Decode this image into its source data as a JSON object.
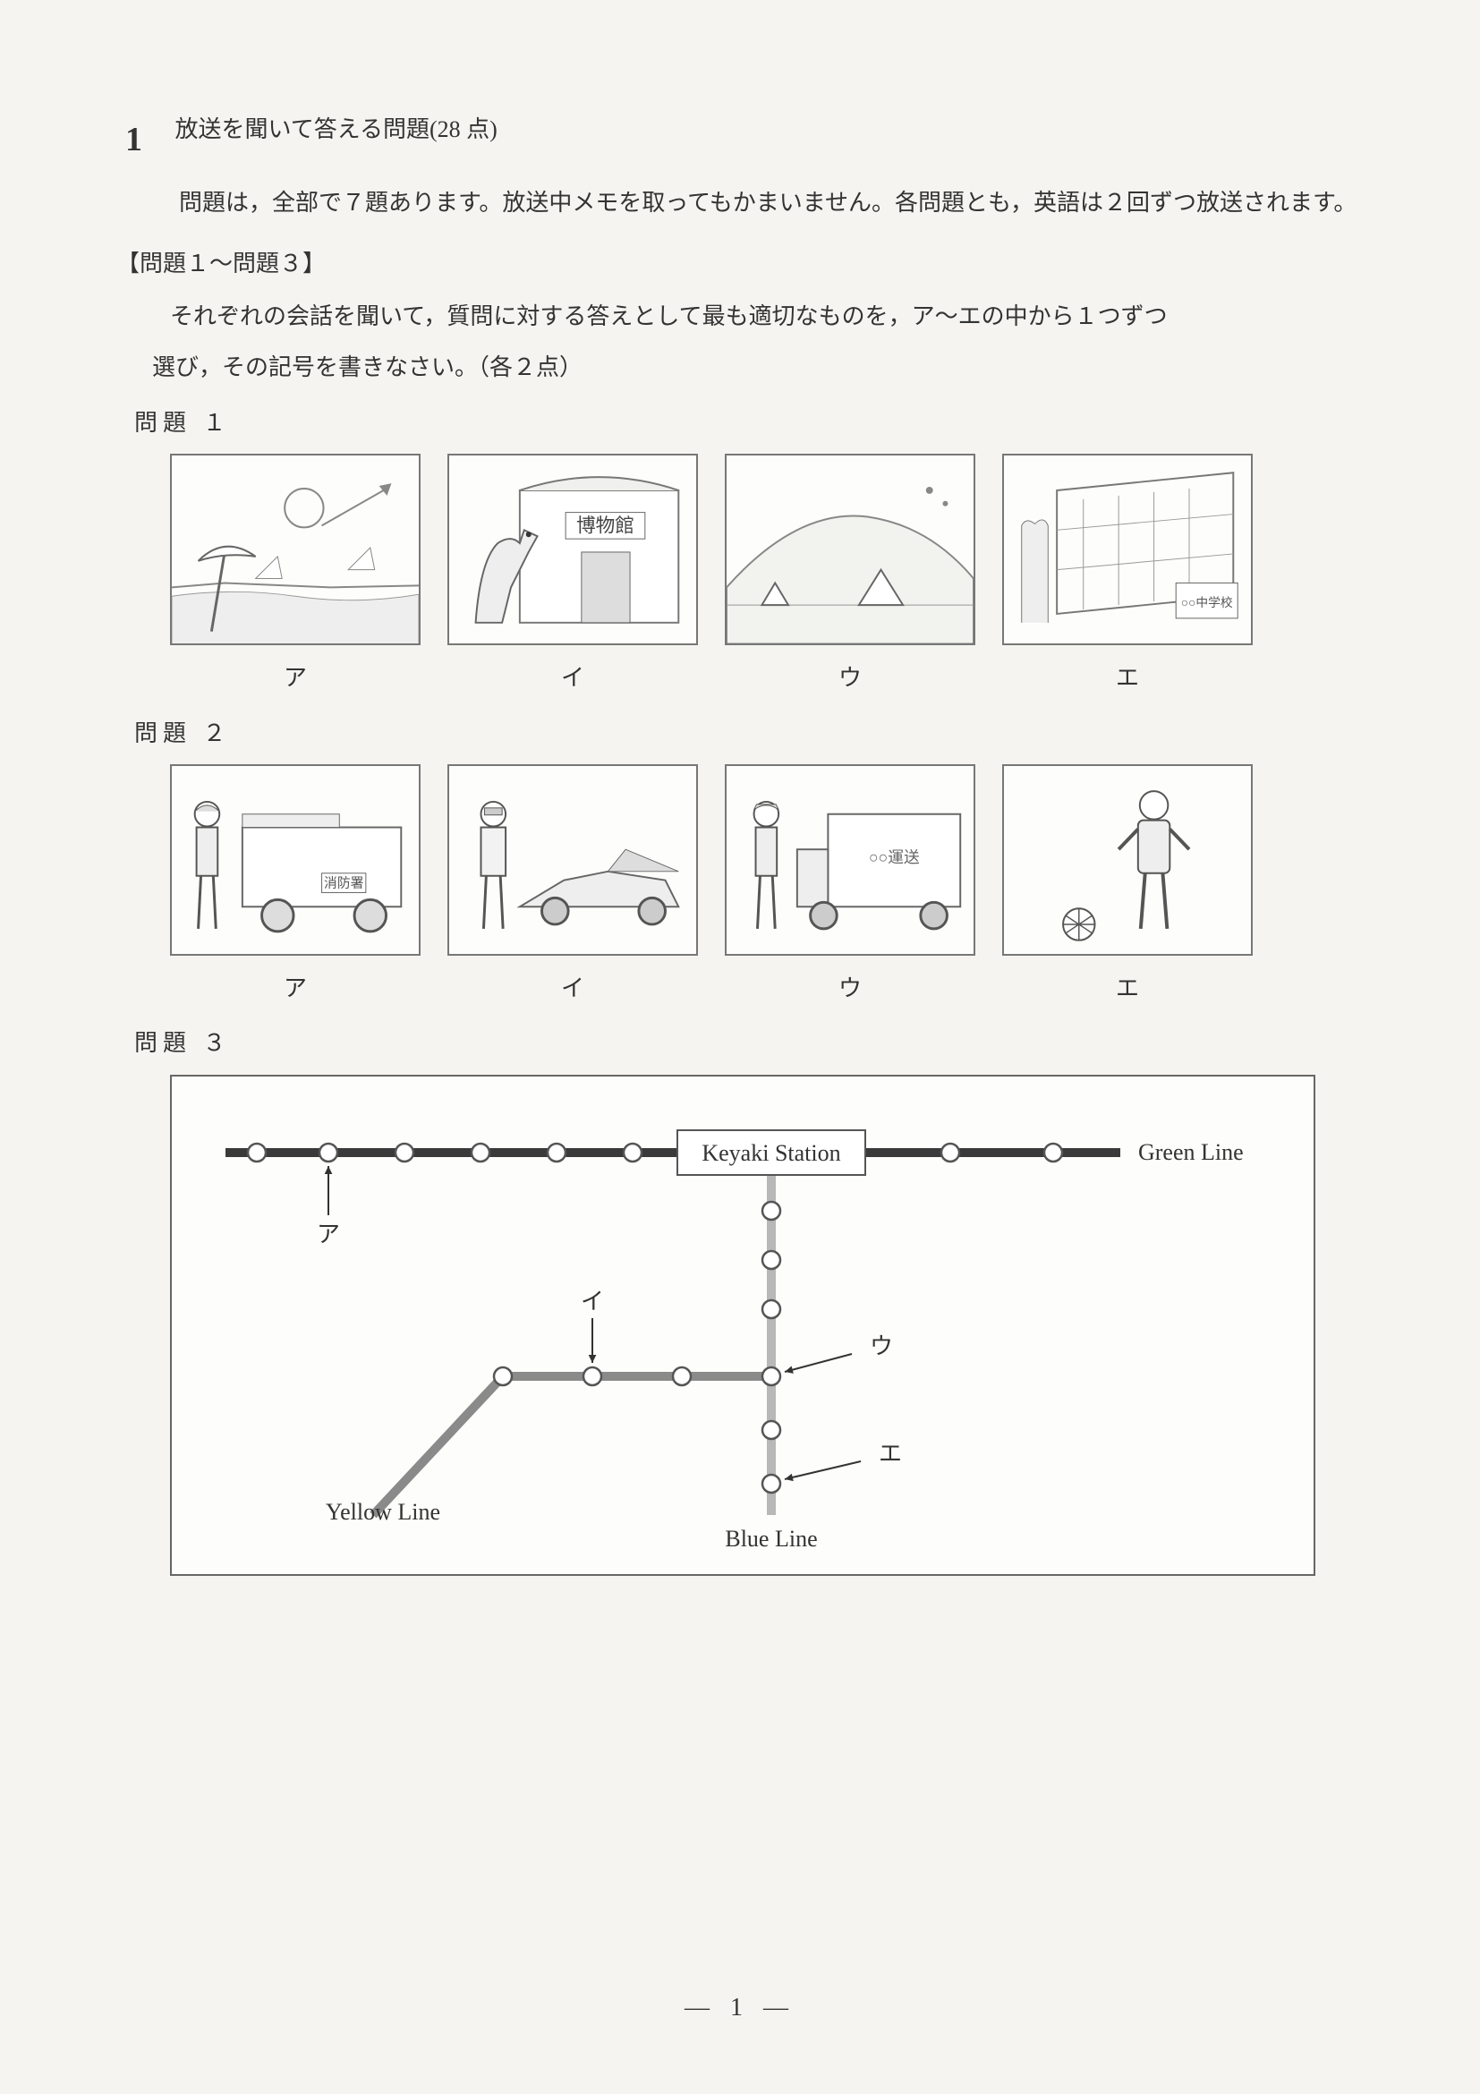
{
  "section": {
    "number": "1",
    "title": "放送を聞いて答える問題(28 点)",
    "intro": "問題は，全部で７題あります。放送中メモを取ってもかまいません。各問題とも，英語は２回ずつ放送されます。",
    "subheading": "【問題１〜問題３】",
    "instruction1": "それぞれの会話を聞いて，質問に対する答えとして最も適切なものを，ア〜エの中から１つずつ",
    "instruction2": "選び，その記号を書きなさい。（各２点）"
  },
  "questions": {
    "q1": {
      "label": "問題 １",
      "options": [
        {
          "label": "ア",
          "img_desc": "海辺・ビーチパラソル",
          "building_text": ""
        },
        {
          "label": "イ",
          "img_desc": "恐竜と博物館",
          "building_text": "博物館"
        },
        {
          "label": "ウ",
          "img_desc": "山とキャンプ場",
          "building_text": ""
        },
        {
          "label": "エ",
          "img_desc": "校舎",
          "building_text": "○○中学校"
        }
      ]
    },
    "q2": {
      "label": "問題 ２",
      "options": [
        {
          "label": "ア",
          "img_desc": "消防車と消防士",
          "vehicle_text": "消防署"
        },
        {
          "label": "イ",
          "img_desc": "レーシングカーとドライバー",
          "vehicle_text": ""
        },
        {
          "label": "ウ",
          "img_desc": "運送トラックと作業員",
          "vehicle_text": "○○運送"
        },
        {
          "label": "エ",
          "img_desc": "サッカー選手とボール",
          "vehicle_text": ""
        }
      ]
    },
    "q3": {
      "label": "問題 ３"
    }
  },
  "map": {
    "station_label": "Keyaki Station",
    "lines": {
      "green": {
        "name": "Green Line",
        "color": "#3a3a3a"
      },
      "blue": {
        "name": "Blue Line",
        "color": "#b8b8b8"
      },
      "yellow": {
        "name": "Yellow Line",
        "color": "#8a8a8a"
      }
    },
    "answer_labels": {
      "a": "ア",
      "i": "イ",
      "u": "ウ",
      "e": "エ"
    },
    "station_marker": {
      "fill": "#ffffff",
      "stroke": "#555555",
      "radius": 10
    },
    "font": {
      "label_size": 26,
      "line_name_size": 26
    }
  },
  "page_number": "— 1 —",
  "colors": {
    "page_bg": "#f5f4f0",
    "border": "#777777",
    "text": "#333333"
  }
}
